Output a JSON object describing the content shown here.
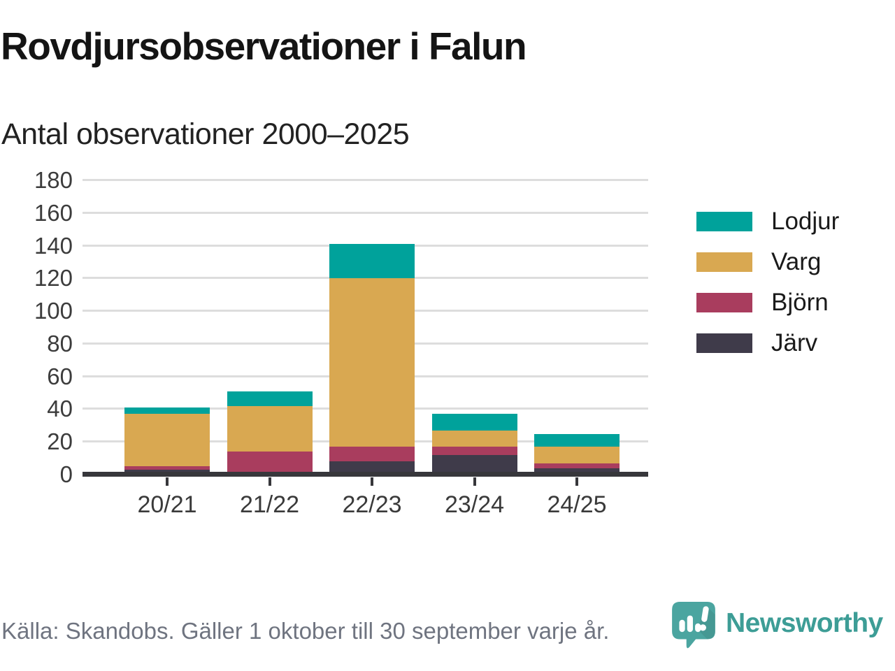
{
  "header": {
    "title": "Rovdjursobservationer i Falun",
    "subtitle": "Antal observationer 2000–2025"
  },
  "chart_data": {
    "type": "bar",
    "stacked": true,
    "title": "Rovdjursobservationer i Falun",
    "subtitle": "Antal observationer 2000–2025",
    "categories": [
      "20/21",
      "21/22",
      "22/23",
      "23/24",
      "24/25"
    ],
    "series": [
      {
        "name": "Lodjur",
        "color": "#00A29B",
        "values": [
          4,
          9,
          21,
          10,
          8
        ]
      },
      {
        "name": "Varg",
        "color": "#D9A851",
        "values": [
          32,
          28,
          103,
          10,
          10
        ]
      },
      {
        "name": "Björn",
        "color": "#A93D5E",
        "values": [
          2,
          14,
          9,
          5,
          3
        ]
      },
      {
        "name": "Järv",
        "color": "#3F3B4A",
        "values": [
          3,
          0,
          8,
          12,
          4
        ]
      }
    ],
    "stack_order_bottom_to_top": [
      "Järv",
      "Björn",
      "Varg",
      "Lodjur"
    ],
    "totals": [
      41,
      51,
      141,
      37,
      25
    ],
    "ylim": [
      0,
      180
    ],
    "ytick_step": 20,
    "grid": "horizontal",
    "legend_position": "right",
    "axis_color": "#37373b",
    "gridline_color": "#dddddd"
  },
  "footer": {
    "source": "Källa: Skandobs. Gäller 1 oktober till 30 september varje år.",
    "brand": "Newsworthy",
    "brand_color": "#3d9d96",
    "logo_color": "#4BA5A0"
  }
}
